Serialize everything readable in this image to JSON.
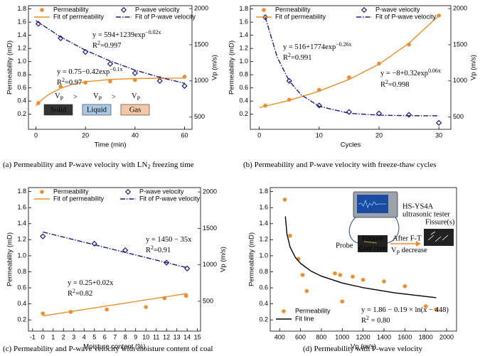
{
  "chart_data": [
    {
      "type": "scatter",
      "x_label": "Time (min)",
      "y_label": "Permeability (mD)",
      "y2_label": "Vp (m/s)",
      "xlim": [
        -3,
        63
      ],
      "xticks": [
        0,
        20,
        40,
        60
      ],
      "ylim": [
        -0.03,
        1.85
      ],
      "yticks": [
        0.2,
        0.4,
        0.6,
        0.8,
        {
          "value": 1,
          "label": "1.0"
        },
        1.2,
        1.4,
        1.6,
        1.8
      ],
      "y2lim": [
        330,
        2040
      ],
      "y2ticks": [
        500,
        1000,
        1500,
        2000
      ],
      "y2color": "#1a1a8c",
      "legend": "top",
      "series": [
        {
          "name": "Permeability",
          "color": "#f28c28",
          "marker": "circle",
          "x": [
            1,
            10,
            20,
            30,
            40,
            50,
            60
          ],
          "values": [
            0.37,
            0.62,
            0.68,
            0.7,
            0.72,
            0.75,
            0.77
          ]
        },
        {
          "name": "P-wave velocity",
          "color": "#1a1a8c",
          "marker": "diamond",
          "axis": "y2",
          "x": [
            1,
            10,
            20,
            30,
            40,
            50,
            60
          ],
          "values": [
            1790,
            1590,
            1400,
            1235,
            1108,
            1000,
            930
          ]
        },
        {
          "name": "Fit of permeability",
          "color": "#f28c28",
          "line": "solid",
          "x": [
            0,
            2.5,
            5,
            10,
            15,
            20,
            30,
            40,
            50,
            60
          ],
          "values": [
            0.33,
            0.423,
            0.495,
            0.595,
            0.656,
            0.693,
            0.729,
            0.742,
            0.747,
            0.749
          ]
        },
        {
          "name": "Fit of P-wave velocity",
          "color": "#1a1a8c",
          "line": "dashdot",
          "axis": "y2",
          "x": [
            0,
            10,
            20,
            30,
            40,
            50,
            60
          ],
          "values": [
            1833,
            1608,
            1424,
            1274,
            1150,
            1049,
            967
          ]
        }
      ],
      "annotations": [
        {
          "parts": [
            {
              "t": "y = 594+1239exp"
            },
            {
              "t": "−0.02x",
              "sup": true
            }
          ]
        },
        {
          "parts": [
            {
              "t": "R"
            },
            {
              "t": "2",
              "sup": true
            },
            {
              "t": "=0.997"
            }
          ]
        },
        {
          "parts": [
            {
              "t": "y = 0.75−0.42exp"
            },
            {
              "t": "−0.1x",
              "sup": true
            }
          ]
        },
        {
          "parts": [
            {
              "t": "R"
            },
            {
              "t": "2",
              "sup": true
            },
            {
              "t": "=0.97"
            }
          ]
        }
      ],
      "phases": {
        "symbol": [
          {
            "t": "V"
          },
          {
            "t": "P",
            "sub": true
          }
        ],
        "compare": ">",
        "labels": [
          "Solid",
          "Liquid",
          "Gas"
        ],
        "colors": [
          "#333333",
          "#a9c9e6",
          "#f4c7a6"
        ],
        "text_colors": [
          "#ffffff",
          "#000000",
          "#000000"
        ]
      },
      "caption": {
        "parts": [
          {
            "t": "(a) Permeability and P-wave velocity with LN"
          },
          {
            "t": "2",
            "sub": true
          },
          {
            "t": " freezing time"
          }
        ]
      }
    },
    {
      "type": "scatter",
      "x_label": "Cycles",
      "y_label": "Permeability (mD)",
      "y2_label": "Vp (m/s)",
      "xlim": [
        -1.5,
        32
      ],
      "xticks": [
        0,
        10,
        20,
        30
      ],
      "ylim": [
        -0.03,
        1.85
      ],
      "yticks": [
        0.2,
        0.4,
        0.6,
        0.8,
        {
          "value": 1,
          "label": "1.0"
        },
        1.2,
        1.4,
        1.6,
        1.8
      ],
      "y2lim": [
        330,
        2040
      ],
      "y2ticks": [
        500,
        1000,
        1500,
        2000
      ],
      "y2color": "#1a1a8c",
      "legend": "top",
      "series": [
        {
          "name": "Permeability",
          "color": "#f28c28",
          "marker": "circle",
          "x": [
            1,
            5,
            10,
            15,
            20,
            25,
            30
          ],
          "values": [
            0.33,
            0.42,
            0.57,
            0.76,
            0.97,
            1.26,
            1.7
          ]
        },
        {
          "name": "P-wave velocity",
          "color": "#1a1a8c",
          "marker": "diamond",
          "axis": "y2",
          "x": [
            1,
            5,
            10,
            15,
            20,
            25,
            30
          ],
          "values": [
            1880,
            1000,
            660,
            570,
            550,
            530,
            420
          ]
        },
        {
          "name": "Fit of permeability",
          "color": "#f28c28",
          "line": "solid",
          "x": [
            0,
            5,
            10,
            15,
            20,
            25,
            30
          ],
          "values": [
            0.3,
            0.41,
            0.55,
            0.73,
            0.96,
            1.28,
            1.7
          ]
        },
        {
          "name": "Fit of P-wave velocity",
          "color": "#1a1a8c",
          "line": "dashdot",
          "axis": "y2",
          "x": [
            1,
            3,
            5,
            7,
            10,
            15,
            20,
            25,
            30
          ],
          "values": [
            1884,
            1327,
            999,
            807,
            648,
            552,
            526,
            519,
            517
          ]
        }
      ],
      "annotations": [
        {
          "parts": [
            {
              "t": "y = 516+1774exp"
            },
            {
              "t": "−0.26x",
              "sup": true
            }
          ]
        },
        {
          "parts": [
            {
              "t": "R"
            },
            {
              "t": "2",
              "sup": true
            },
            {
              "t": "=0.991"
            }
          ]
        },
        {
          "parts": [
            {
              "t": "y = −8+0.32exp"
            },
            {
              "t": "0.06x",
              "sup": true
            }
          ]
        },
        {
          "parts": [
            {
              "t": "R"
            },
            {
              "t": "2",
              "sup": true
            },
            {
              "t": "=0.998"
            }
          ]
        }
      ],
      "caption": {
        "parts": [
          {
            "t": "(b) Permeability and P-wave velocity with freeze-thaw cycles"
          }
        ]
      }
    },
    {
      "type": "scatter",
      "x_label": "Moisture content (%)",
      "y_label": "Permeability (mD)",
      "y2_label": "Vp (m/s)",
      "xlim": [
        -1.4,
        15.3
      ],
      "xticks": [
        -1,
        0,
        1,
        2,
        3,
        4,
        5,
        6,
        7,
        8,
        9,
        10,
        11,
        12,
        13,
        14,
        15
      ],
      "ylim": [
        0.06,
        1.85
      ],
      "yticks": [
        0.2,
        0.4,
        0.6,
        0.8,
        {
          "value": 1,
          "label": "1.0"
        },
        1.2,
        1.4,
        1.6,
        1.8
      ],
      "y2lim": [
        90,
        2060
      ],
      "y2ticks": [
        500,
        1000,
        1500,
        2000
      ],
      "y2color": "#1a1a8c",
      "legend": "top",
      "series": [
        {
          "name": "Permeability",
          "color": "#f28c28",
          "marker": "circle",
          "x": [
            0,
            2.7,
            6.2,
            10,
            11.8,
            13.9
          ],
          "values": [
            0.28,
            0.3,
            0.33,
            0.36,
            0.47,
            0.5
          ]
        },
        {
          "name": "P-wave velocity",
          "color": "#1a1a8c",
          "marker": "diamond",
          "axis": "y2",
          "x": [
            0,
            5,
            8,
            12,
            14
          ],
          "values": [
            1390,
            1290,
            1200,
            1030,
            950
          ]
        },
        {
          "name": "Fit of permeability",
          "color": "#f28c28",
          "line": "solid",
          "x": [
            0,
            14
          ],
          "values": [
            0.25,
            0.53
          ]
        },
        {
          "name": "Fit of P-wave velocity",
          "color": "#1a1a8c",
          "line": "dashdot",
          "axis": "y2",
          "x": [
            0,
            14
          ],
          "values": [
            1450,
            960
          ]
        }
      ],
      "annotations": [
        {
          "parts": [
            {
              "t": "y = 1450 − 35x"
            }
          ]
        },
        {
          "parts": [
            {
              "t": "R"
            },
            {
              "t": "2",
              "sup": true
            },
            {
              "t": "=0.91"
            }
          ]
        },
        {
          "parts": [
            {
              "t": "y = 0.25+0.02x"
            }
          ]
        },
        {
          "parts": [
            {
              "t": "R"
            },
            {
              "t": "2",
              "sup": true
            },
            {
              "t": "=0.82"
            }
          ]
        }
      ],
      "caption": {
        "parts": [
          {
            "t": "(c) Permeability and P-wave velocity with moisture content of coal"
          }
        ]
      }
    },
    {
      "type": "scatter",
      "x_label": "Vp (m/s)",
      "y_label": "Permeability (mD)",
      "xlim": [
        310,
        2095
      ],
      "xticks": [
        400,
        600,
        800,
        1000,
        1200,
        1400,
        1600,
        1800,
        2000
      ],
      "ylim": [
        0.06,
        1.85
      ],
      "yticks": [
        0.2,
        0.4,
        0.6,
        0.8,
        {
          "value": 1,
          "label": "1.0"
        },
        1.2,
        1.4,
        1.6,
        1.8
      ],
      "legend": "lower left",
      "series": [
        {
          "name": "Permeability",
          "color": "#f28c28",
          "marker": "circle",
          "x": [
            450,
            500,
            580,
            620,
            660,
            930,
            980,
            1000,
            1100,
            1200,
            1400,
            1600,
            1800,
            1900
          ],
          "values": [
            1.7,
            1.25,
            0.96,
            0.76,
            0.56,
            0.78,
            0.76,
            0.43,
            0.74,
            0.7,
            0.68,
            0.62,
            0.37,
            0.33
          ]
        },
        {
          "name": "Fit line",
          "color": "#000000",
          "line": "solid",
          "x": [
            455,
            470,
            500,
            550,
            600,
            700,
            800,
            1000,
            1200,
            1500,
            1900
          ],
          "values": [
            1.49,
            1.273,
            1.109,
            0.981,
            0.905,
            0.81,
            0.746,
            0.66,
            0.602,
            0.538,
            0.477
          ]
        }
      ],
      "annotations": [
        {
          "parts": [
            {
              "t": "y = 1.86 − 0.19 × ln(x − 448)"
            }
          ]
        },
        {
          "parts": [
            {
              "t": "R"
            },
            {
              "t": "2",
              "sup": true
            },
            {
              "t": " = 0.80"
            }
          ]
        }
      ],
      "inset": {
        "device": "HS-YS4A",
        "device_desc": "ultrasonic tester",
        "probe": "Probe",
        "fissure": "Fissure",
        "core": "Coal core",
        "process": "After F-T",
        "result": [
          {
            "t": "V"
          },
          {
            "t": "P",
            "sub": true
          },
          {
            "t": " decrease"
          }
        ],
        "fissures": "Fissure(s)"
      },
      "caption": {
        "parts": [
          {
            "t": "(d) Permeability with P-wave velocity"
          }
        ]
      }
    }
  ]
}
